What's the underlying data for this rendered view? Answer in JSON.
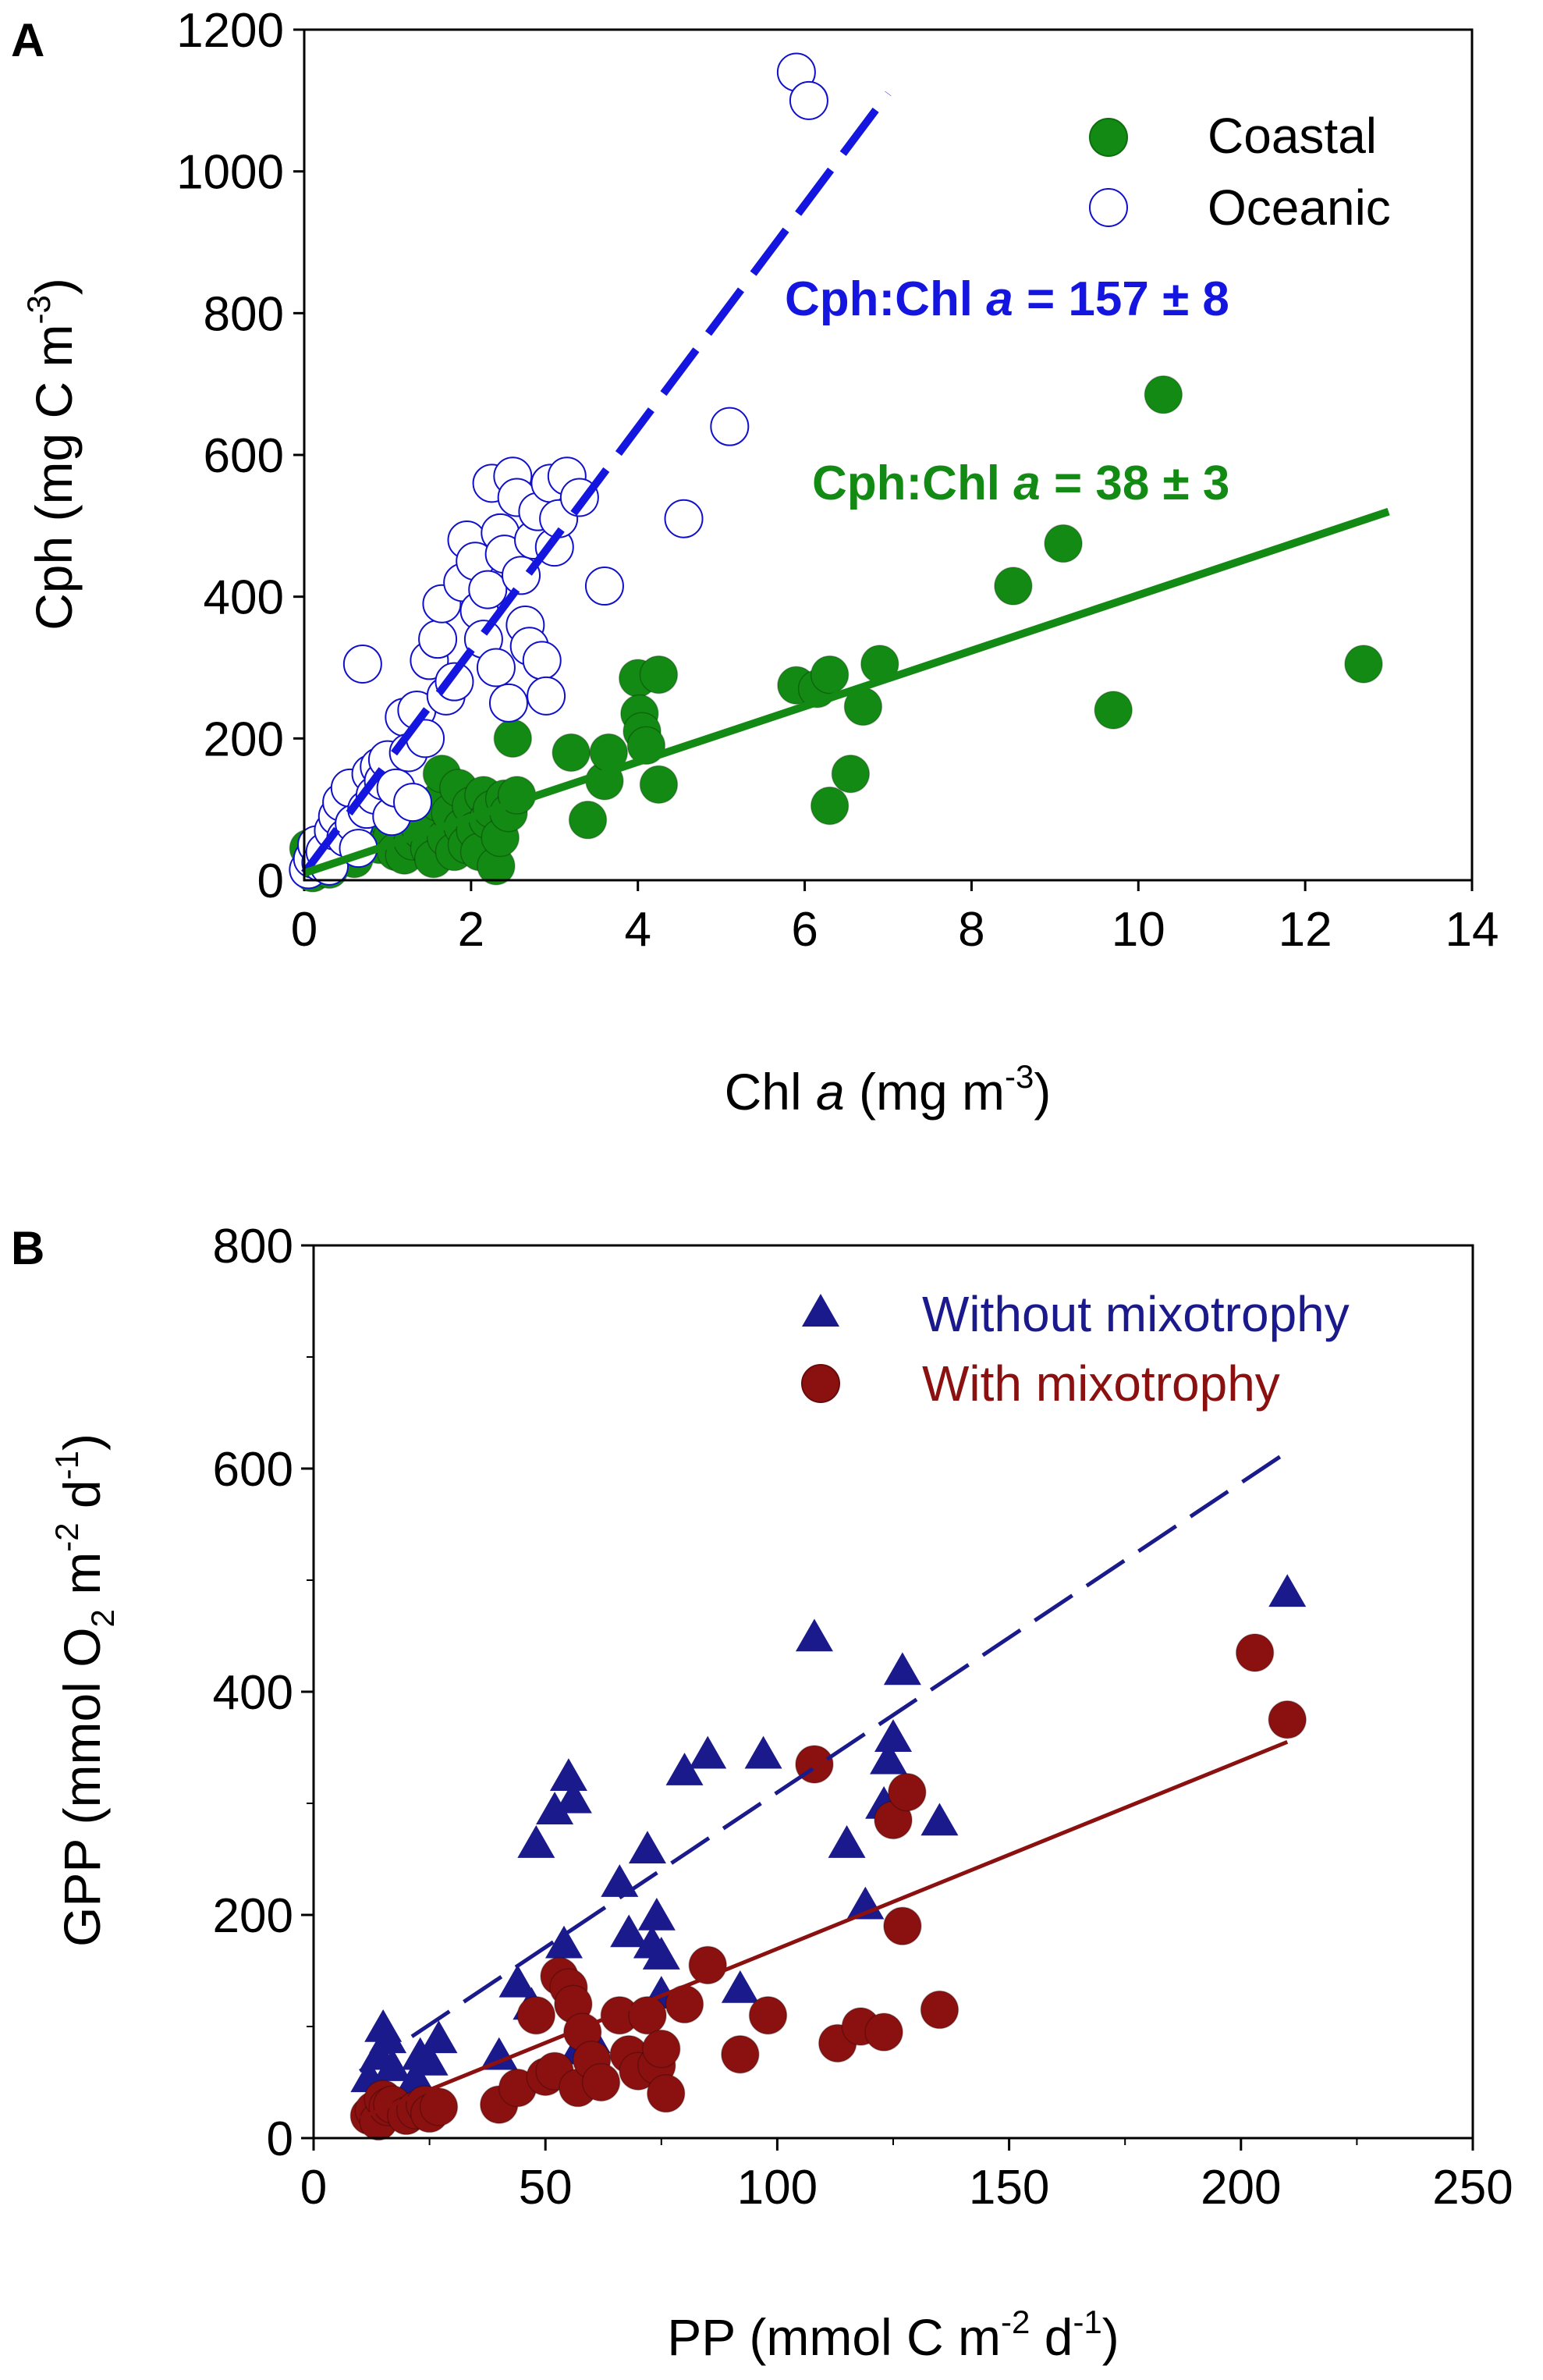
{
  "chart_data": [
    {
      "panel_label": "A",
      "type": "scatter",
      "xlabel": "Chl a (mg m-3)",
      "xlabel_parts": {
        "base": "Chl ",
        "italic": "a",
        "unit": " (mg m",
        "sup": "-3",
        "close": ")"
      },
      "ylabel": "Cph (mg C m-3)",
      "ylabel_parts": {
        "base": "Cph (mg C m",
        "sup": "-3",
        "close": ")"
      },
      "xlim": [
        0,
        14
      ],
      "ylim": [
        0,
        1200
      ],
      "xticks": [
        0,
        2,
        4,
        6,
        8,
        10,
        12,
        14
      ],
      "yticks": [
        0,
        200,
        400,
        600,
        800,
        1000,
        1200
      ],
      "legend": [
        {
          "label": "Coastal",
          "marker": "filled-circle",
          "color": "#138a13"
        },
        {
          "label": "Oceanic",
          "marker": "open-circle",
          "color": "#1010cc"
        }
      ],
      "annotations": [
        {
          "parts": [
            "Cph:Chl ",
            "a",
            " = 157 ± 8"
          ],
          "color": "#1515e0"
        },
        {
          "parts": [
            "Cph:Chl ",
            "a",
            " = 38 ± 3"
          ],
          "color": "#138a13"
        }
      ],
      "fits": [
        {
          "name": "Oceanic fit",
          "style": "dashed",
          "color": "#1515e0",
          "x": [
            0,
            7.0
          ],
          "y": [
            10,
            1110
          ]
        },
        {
          "name": "Coastal fit",
          "style": "solid",
          "color": "#138a13",
          "x": [
            0,
            13.0
          ],
          "y": [
            10,
            520
          ]
        }
      ],
      "series": [
        {
          "name": "Coastal",
          "points": [
            [
              0.05,
              45
            ],
            [
              0.1,
              10
            ],
            [
              0.2,
              30
            ],
            [
              0.3,
              15
            ],
            [
              0.4,
              60
            ],
            [
              0.5,
              40
            ],
            [
              0.6,
              30
            ],
            [
              0.7,
              75
            ],
            [
              0.8,
              55
            ],
            [
              0.9,
              50
            ],
            [
              1.0,
              85
            ],
            [
              1.05,
              60
            ],
            [
              1.1,
              40
            ],
            [
              1.2,
              35
            ],
            [
              1.3,
              55
            ],
            [
              1.4,
              70
            ],
            [
              1.5,
              45
            ],
            [
              1.55,
              30
            ],
            [
              1.6,
              110
            ],
            [
              1.65,
              150
            ],
            [
              1.7,
              60
            ],
            [
              1.75,
              95
            ],
            [
              1.8,
              40
            ],
            [
              1.85,
              130
            ],
            [
              1.9,
              75
            ],
            [
              1.95,
              50
            ],
            [
              2.0,
              105
            ],
            [
              2.05,
              70
            ],
            [
              2.1,
              40
            ],
            [
              2.15,
              120
            ],
            [
              2.2,
              85
            ],
            [
              2.25,
              100
            ],
            [
              2.3,
              20
            ],
            [
              2.35,
              60
            ],
            [
              2.4,
              115
            ],
            [
              2.45,
              95
            ],
            [
              2.5,
              200
            ],
            [
              2.55,
              120
            ],
            [
              3.2,
              180
            ],
            [
              3.4,
              85
            ],
            [
              3.6,
              140
            ],
            [
              3.65,
              180
            ],
            [
              4.0,
              285
            ],
            [
              4.02,
              235
            ],
            [
              4.05,
              210
            ],
            [
              4.1,
              190
            ],
            [
              4.25,
              290
            ],
            [
              4.25,
              135
            ],
            [
              5.9,
              275
            ],
            [
              6.15,
              270
            ],
            [
              6.3,
              290
            ],
            [
              6.3,
              105
            ],
            [
              6.55,
              150
            ],
            [
              6.7,
              245
            ],
            [
              6.9,
              305
            ],
            [
              8.5,
              415
            ],
            [
              9.1,
              475
            ],
            [
              9.7,
              240
            ],
            [
              10.3,
              685
            ],
            [
              12.7,
              305
            ]
          ]
        },
        {
          "name": "Oceanic",
          "points": [
            [
              0.05,
              15
            ],
            [
              0.1,
              30
            ],
            [
              0.15,
              50
            ],
            [
              0.2,
              25
            ],
            [
              0.25,
              40
            ],
            [
              0.3,
              20
            ],
            [
              0.35,
              70
            ],
            [
              0.4,
              90
            ],
            [
              0.45,
              110
            ],
            [
              0.5,
              60
            ],
            [
              0.55,
              130
            ],
            [
              0.6,
              80
            ],
            [
              0.65,
              45
            ],
            [
              0.7,
              305
            ],
            [
              0.75,
              100
            ],
            [
              0.8,
              150
            ],
            [
              0.85,
              120
            ],
            [
              0.9,
              160
            ],
            [
              0.95,
              140
            ],
            [
              1.0,
              170
            ],
            [
              1.05,
              90
            ],
            [
              1.1,
              130
            ],
            [
              1.2,
              230
            ],
            [
              1.25,
              180
            ],
            [
              1.3,
              110
            ],
            [
              1.35,
              240
            ],
            [
              1.45,
              200
            ],
            [
              1.5,
              310
            ],
            [
              1.6,
              340
            ],
            [
              1.65,
              390
            ],
            [
              1.7,
              260
            ],
            [
              1.8,
              280
            ],
            [
              1.9,
              420
            ],
            [
              1.95,
              480
            ],
            [
              2.05,
              450
            ],
            [
              2.1,
              380
            ],
            [
              2.15,
              340
            ],
            [
              2.2,
              410
            ],
            [
              2.25,
              560
            ],
            [
              2.3,
              300
            ],
            [
              2.35,
              490
            ],
            [
              2.4,
              460
            ],
            [
              2.45,
              250
            ],
            [
              2.5,
              570
            ],
            [
              2.55,
              540
            ],
            [
              2.6,
              430
            ],
            [
              2.65,
              360
            ],
            [
              2.7,
              330
            ],
            [
              2.75,
              480
            ],
            [
              2.8,
              520
            ],
            [
              2.85,
              310
            ],
            [
              2.9,
              260
            ],
            [
              2.95,
              560
            ],
            [
              3.0,
              470
            ],
            [
              3.05,
              510
            ],
            [
              3.15,
              570
            ],
            [
              3.3,
              540
            ],
            [
              3.6,
              415
            ],
            [
              4.55,
              510
            ],
            [
              5.1,
              640
            ],
            [
              5.9,
              1140
            ],
            [
              6.05,
              1100
            ]
          ]
        }
      ]
    },
    {
      "panel_label": "B",
      "type": "scatter",
      "xlabel": "PP (mmol C m-2 d-1)",
      "xlabel_parts": {
        "a": "PP (mmol C m",
        "sup1": "-2",
        "b": " d",
        "sup2": "-1",
        "c": ")"
      },
      "ylabel": "GPP (mmol O2 m-2 d-1)",
      "ylabel_parts": {
        "a": "GPP (mmol O",
        "sub": "2",
        "b": " m",
        "sup1": "-2",
        "c": " d",
        "sup2": "-1",
        "d": ")"
      },
      "xlim": [
        0,
        250
      ],
      "ylim": [
        0,
        800
      ],
      "xticks": [
        0,
        50,
        100,
        150,
        200,
        250
      ],
      "yticks": [
        0,
        200,
        400,
        600,
        800
      ],
      "legend": [
        {
          "label": "Without mixotrophy",
          "marker": "filled-triangle",
          "color": "#1a1a8c"
        },
        {
          "label": "With mixotrophy",
          "marker": "filled-circle",
          "color": "#8b1010"
        }
      ],
      "fits": [
        {
          "name": "Without mixotrophy fit",
          "style": "dashed",
          "color": "#1a1a8c",
          "x": [
            10,
            210
          ],
          "y": [
            60,
            615
          ]
        },
        {
          "name": "With mixotrophy fit",
          "style": "solid",
          "color": "#8b1010",
          "x": [
            10,
            210
          ],
          "y": [
            18,
            355
          ]
        }
      ],
      "series": [
        {
          "name": "Without mixotrophy",
          "points": [
            [
              12,
              55
            ],
            [
              14,
              75
            ],
            [
              15,
              100
            ],
            [
              16,
              90
            ],
            [
              17,
              65
            ],
            [
              20,
              40
            ],
            [
              22,
              55
            ],
            [
              23,
              75
            ],
            [
              25,
              70
            ],
            [
              27,
              90
            ],
            [
              40,
              75
            ],
            [
              44,
              140
            ],
            [
              47,
              120
            ],
            [
              48,
              265
            ],
            [
              52,
              295
            ],
            [
              54,
              175
            ],
            [
              55,
              325
            ],
            [
              56,
              305
            ],
            [
              57,
              80
            ],
            [
              60,
              90
            ],
            [
              66,
              230
            ],
            [
              68,
              185
            ],
            [
              72,
              260
            ],
            [
              73,
              175
            ],
            [
              74,
              200
            ],
            [
              75,
              165
            ],
            [
              75,
              130
            ],
            [
              80,
              330
            ],
            [
              85,
              345
            ],
            [
              92,
              135
            ],
            [
              97,
              345
            ],
            [
              108,
              450
            ],
            [
              115,
              265
            ],
            [
              119,
              210
            ],
            [
              123,
              300
            ],
            [
              124,
              340
            ],
            [
              125,
              360
            ],
            [
              127,
              420
            ],
            [
              135,
              285
            ],
            [
              210,
              490
            ]
          ]
        },
        {
          "name": "With mixotrophy",
          "points": [
            [
              12,
              20
            ],
            [
              13,
              25
            ],
            [
              14,
              15
            ],
            [
              15,
              35
            ],
            [
              16,
              28
            ],
            [
              17,
              30
            ],
            [
              20,
              20
            ],
            [
              22,
              25
            ],
            [
              24,
              30
            ],
            [
              25,
              22
            ],
            [
              27,
              28
            ],
            [
              40,
              30
            ],
            [
              44,
              45
            ],
            [
              48,
              110
            ],
            [
              50,
              55
            ],
            [
              52,
              60
            ],
            [
              53,
              145
            ],
            [
              55,
              135
            ],
            [
              56,
              120
            ],
            [
              57,
              45
            ],
            [
              58,
              95
            ],
            [
              60,
              70
            ],
            [
              62,
              50
            ],
            [
              66,
              110
            ],
            [
              68,
              75
            ],
            [
              70,
              60
            ],
            [
              72,
              110
            ],
            [
              74,
              65
            ],
            [
              75,
              80
            ],
            [
              76,
              40
            ],
            [
              80,
              120
            ],
            [
              85,
              155
            ],
            [
              92,
              75
            ],
            [
              98,
              110
            ],
            [
              108,
              335
            ],
            [
              113,
              85
            ],
            [
              118,
              100
            ],
            [
              123,
              95
            ],
            [
              125,
              285
            ],
            [
              127,
              190
            ],
            [
              128,
              310
            ],
            [
              135,
              115
            ],
            [
              203,
              435
            ],
            [
              210,
              375
            ]
          ]
        }
      ]
    }
  ]
}
